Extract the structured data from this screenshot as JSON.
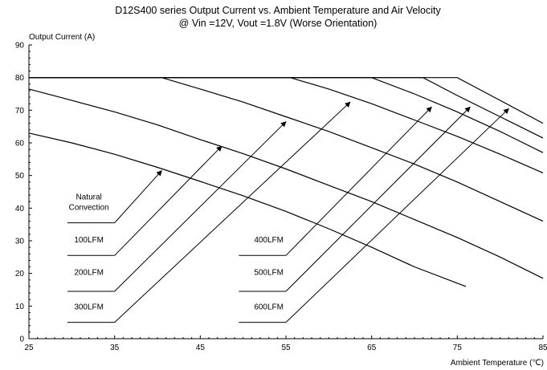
{
  "chart_data": {
    "type": "line",
    "title": "D12S400 series Output Current vs. Ambient Temperature and Air Velocity",
    "subtitle": "@ Vin =12V, Vout =1.8V (Worse Orientation)",
    "xlabel": "Ambient Temperature (℃)",
    "ylabel": "Output Current (A)",
    "xlim": [
      25,
      85
    ],
    "ylim": [
      0,
      90
    ],
    "xticks": [
      25,
      35,
      45,
      55,
      65,
      75,
      85
    ],
    "yticks": [
      0,
      10,
      20,
      30,
      40,
      50,
      60,
      70,
      80,
      90
    ],
    "grid": false,
    "series": [
      {
        "name": "Natural Convection",
        "points": [
          [
            25,
            63
          ],
          [
            30,
            60
          ],
          [
            35,
            56.5
          ],
          [
            40,
            52.5
          ],
          [
            45,
            48.2
          ],
          [
            50,
            43.8
          ],
          [
            55,
            39
          ],
          [
            60,
            33.7
          ],
          [
            65,
            28
          ],
          [
            70,
            22
          ],
          [
            76,
            16
          ]
        ]
      },
      {
        "name": "100LFM",
        "points": [
          [
            25,
            76.5
          ],
          [
            30,
            73
          ],
          [
            35,
            69.5
          ],
          [
            40,
            65.5
          ],
          [
            45,
            61
          ],
          [
            50,
            56.7
          ],
          [
            55,
            52
          ],
          [
            60,
            47
          ],
          [
            65,
            42
          ],
          [
            70,
            36.5
          ],
          [
            75,
            31
          ],
          [
            80,
            25
          ],
          [
            85,
            18.5
          ]
        ]
      },
      {
        "name": "200LFM",
        "points": [
          [
            25,
            80
          ],
          [
            40.5,
            80
          ],
          [
            45,
            76.5
          ],
          [
            50,
            72.5
          ],
          [
            55,
            68
          ],
          [
            60,
            63.5
          ],
          [
            65,
            58.5
          ],
          [
            70,
            53.5
          ],
          [
            75,
            48
          ],
          [
            80,
            42
          ],
          [
            85,
            36
          ]
        ]
      },
      {
        "name": "300LFM",
        "points": [
          [
            25,
            80
          ],
          [
            55.5,
            80
          ],
          [
            60,
            76.5
          ],
          [
            65,
            72
          ],
          [
            70,
            67
          ],
          [
            75,
            62
          ],
          [
            80,
            56.5
          ],
          [
            85,
            50.8
          ]
        ]
      },
      {
        "name": "400LFM",
        "points": [
          [
            25,
            80
          ],
          [
            65,
            80
          ],
          [
            70,
            75
          ],
          [
            75,
            69.5
          ],
          [
            80,
            63.5
          ],
          [
            85,
            57
          ]
        ]
      },
      {
        "name": "500LFM",
        "points": [
          [
            25,
            80
          ],
          [
            71,
            80
          ],
          [
            75,
            74.5
          ],
          [
            80,
            68
          ],
          [
            85,
            61.5
          ]
        ]
      },
      {
        "name": "600LFM",
        "points": [
          [
            25,
            80
          ],
          [
            75,
            80
          ],
          [
            80,
            73
          ],
          [
            85,
            66
          ]
        ]
      }
    ],
    "callouts": [
      {
        "text": [
          "Natural",
          "Convection"
        ],
        "label_x": 32,
        "label_y": 39.5,
        "line_y": 35.5,
        "line_x": [
          29.5,
          35
        ],
        "arrow_to": [
          40.5,
          51.5
        ]
      },
      {
        "text": [
          "100LFM"
        ],
        "label_x": 32,
        "label_y": 29.5,
        "line_y": 25.5,
        "line_x": [
          29.5,
          35
        ],
        "arrow_to": [
          47.5,
          59
        ]
      },
      {
        "text": [
          "200LFM"
        ],
        "label_x": 32,
        "label_y": 19.5,
        "line_y": 14.5,
        "line_x": [
          29.5,
          35
        ],
        "arrow_to": [
          55,
          66.5
        ]
      },
      {
        "text": [
          "300LFM"
        ],
        "label_x": 32,
        "label_y": 9,
        "line_y": 5,
        "line_x": [
          29.5,
          35
        ],
        "arrow_to": [
          62.5,
          72.5
        ]
      },
      {
        "text": [
          "400LFM"
        ],
        "label_x": 53,
        "label_y": 29.5,
        "line_y": 25.5,
        "line_x": [
          49.5,
          55
        ],
        "arrow_to": [
          72,
          71
        ]
      },
      {
        "text": [
          "500LFM"
        ],
        "label_x": 53,
        "label_y": 19.5,
        "line_y": 14.5,
        "line_x": [
          49.5,
          55
        ],
        "arrow_to": [
          76.5,
          71
        ]
      },
      {
        "text": [
          "600LFM"
        ],
        "label_x": 53,
        "label_y": 9,
        "line_y": 5,
        "line_x": [
          49.5,
          55
        ],
        "arrow_to": [
          81,
          70.5
        ]
      }
    ]
  }
}
